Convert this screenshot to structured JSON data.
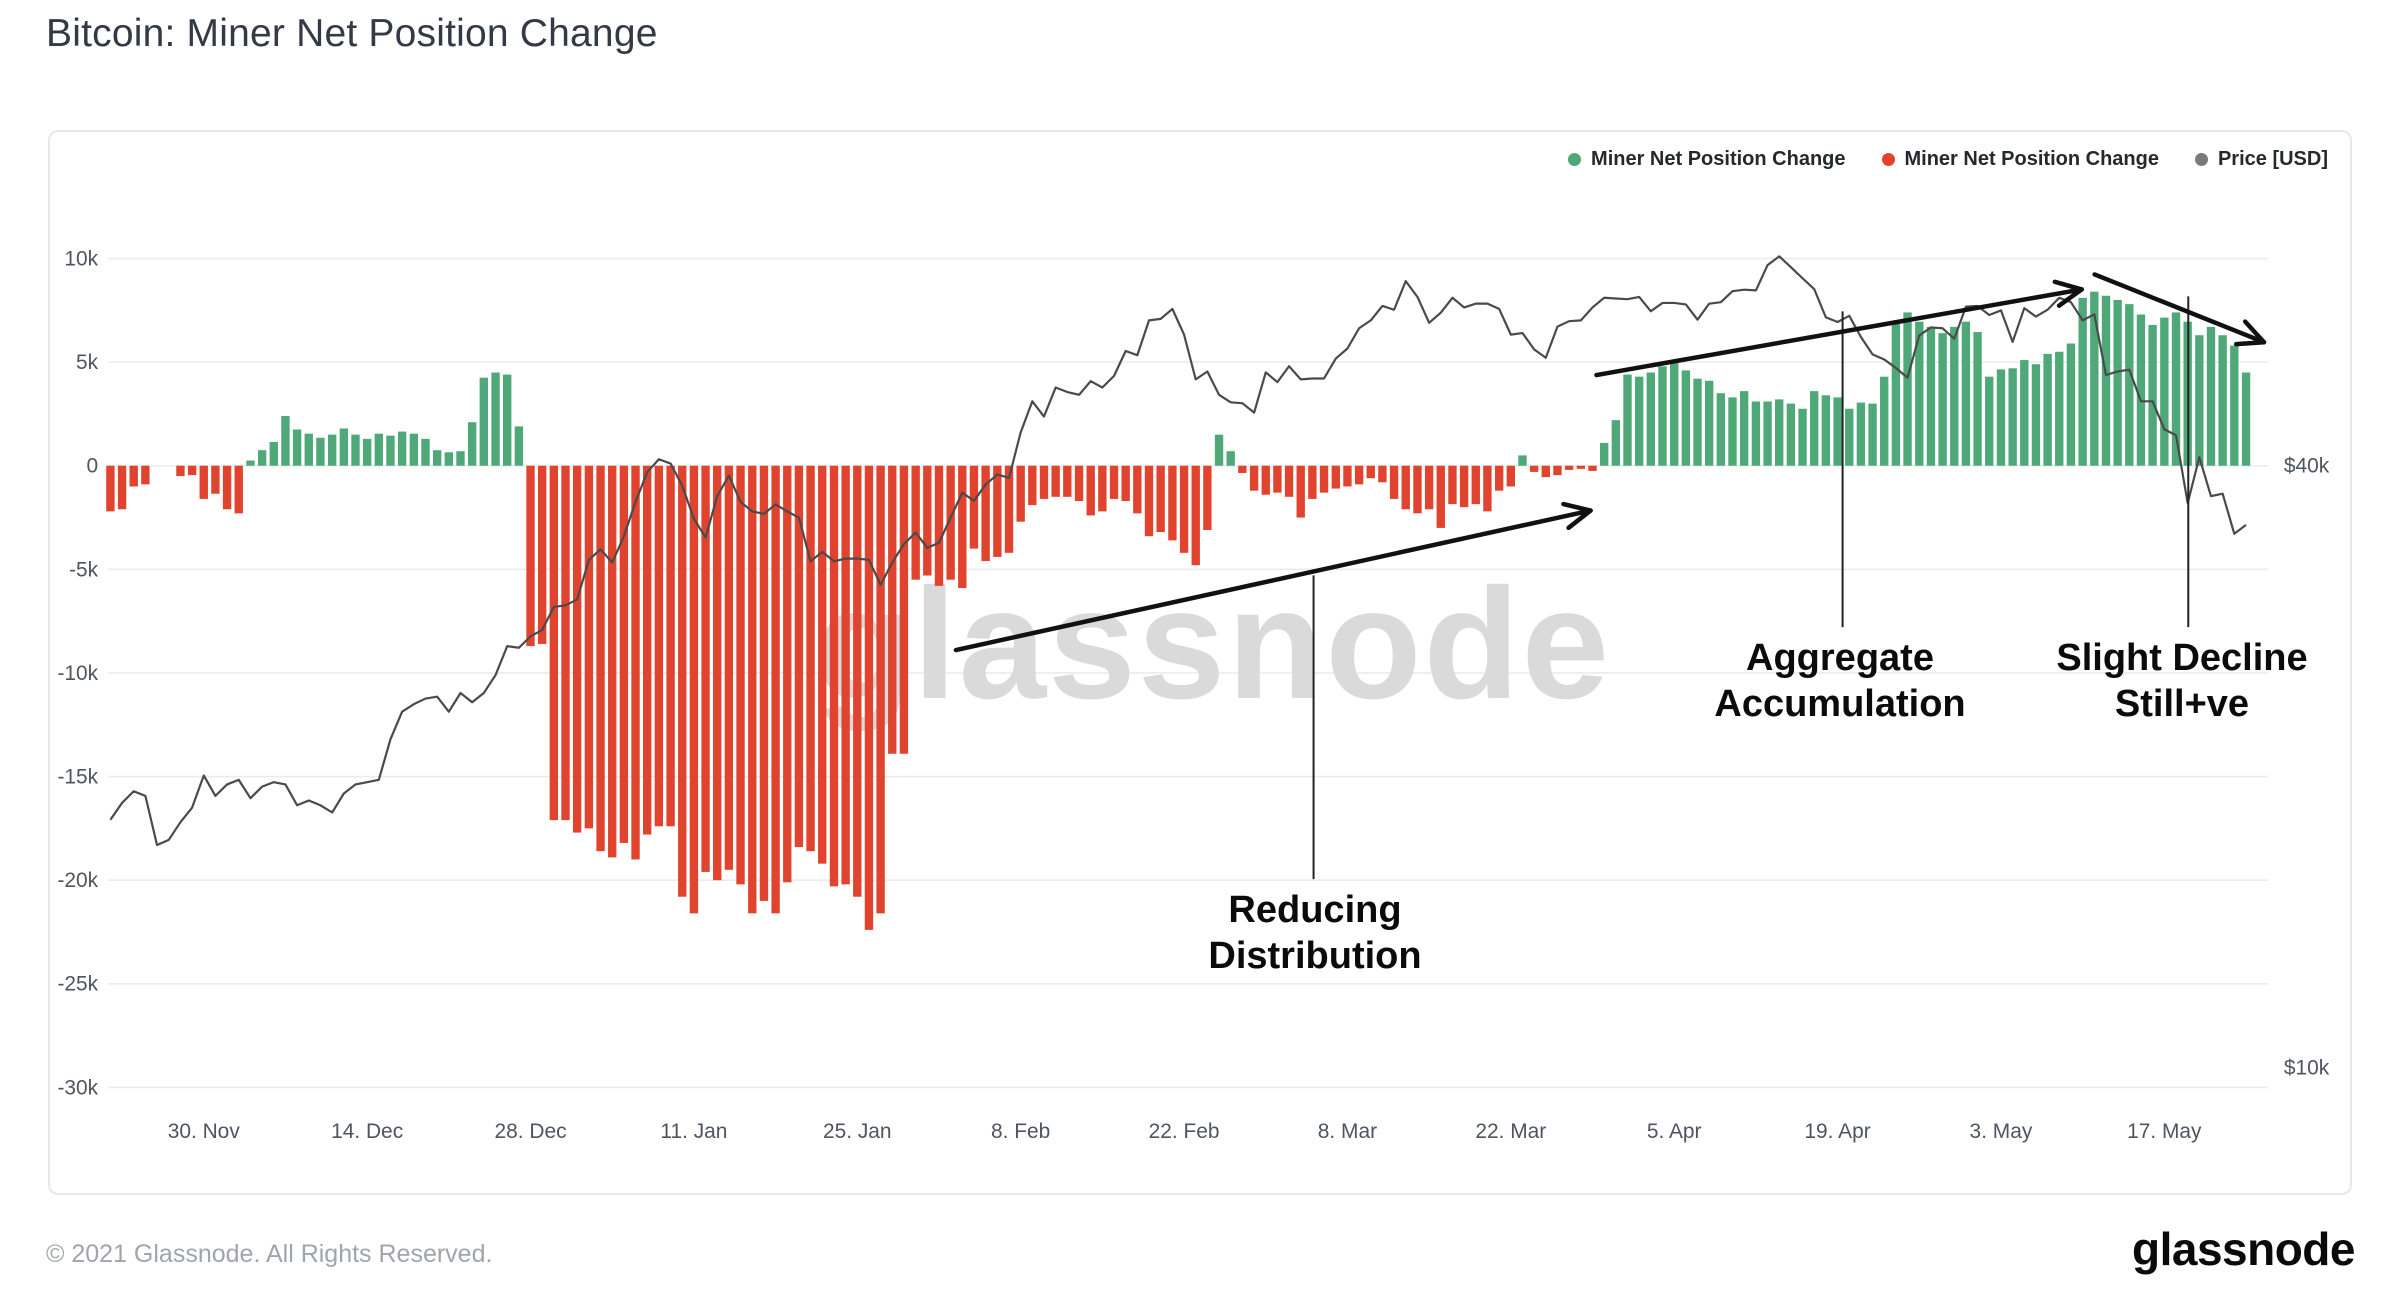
{
  "header": {
    "title": "Bitcoin: Miner Net Position Change"
  },
  "legend": {
    "items": [
      {
        "label": "Miner Net Position Change",
        "color": "#4ea878"
      },
      {
        "label": "Miner Net Position Change",
        "color": "#e0442f"
      },
      {
        "label": "Price [USD]",
        "color": "#7a7a7a"
      }
    ]
  },
  "watermark": "glassnode",
  "annotations": {
    "reducing": {
      "lines": [
        "Reducing",
        "Distribution"
      ]
    },
    "aggregate": {
      "lines": [
        "Aggregate",
        "Accumulation"
      ]
    },
    "slight": {
      "lines": [
        "Slight Decline",
        "Still+ve"
      ]
    }
  },
  "footer": {
    "copyright": "© 2021 Glassnode. All Rights Reserved.",
    "logo": "glassnode"
  },
  "chart_data": {
    "type": "bar",
    "title": "Bitcoin: Miner Net Position Change",
    "start_date": "2020-11-22",
    "frequency": "daily",
    "bar_series_name": "Miner Net Position Change",
    "bar_unit": "BTC (thousands)",
    "bar_values_k_btc": [
      -2.2,
      -2.1,
      -1.0,
      -0.9,
      0,
      0,
      -0.5,
      -0.45,
      -1.6,
      -1.35,
      -2.1,
      -2.3,
      0.25,
      0.75,
      1.15,
      2.4,
      1.75,
      1.55,
      1.35,
      1.5,
      1.8,
      1.5,
      1.3,
      1.55,
      1.45,
      1.65,
      1.55,
      1.3,
      0.75,
      0.65,
      0.7,
      2.1,
      4.25,
      4.5,
      4.4,
      1.9,
      -8.7,
      -8.6,
      -17.1,
      -17.1,
      -17.7,
      -17.5,
      -18.6,
      -18.9,
      -18.2,
      -19.0,
      -17.8,
      -17.4,
      -17.4,
      -20.8,
      -21.6,
      -19.6,
      -20.0,
      -19.5,
      -20.2,
      -21.6,
      -21.0,
      -21.6,
      -20.1,
      -18.4,
      -18.6,
      -19.2,
      -20.3,
      -20.2,
      -20.8,
      -22.4,
      -21.6,
      -13.9,
      -13.9,
      -5.5,
      -5.3,
      -5.8,
      -5.5,
      -5.9,
      -4.0,
      -4.6,
      -4.4,
      -4.2,
      -2.7,
      -1.9,
      -1.6,
      -1.5,
      -1.5,
      -1.7,
      -2.4,
      -2.2,
      -1.6,
      -1.7,
      -2.3,
      -3.4,
      -3.2,
      -3.6,
      -4.2,
      -4.8,
      -3.1,
      1.5,
      0.7,
      -0.35,
      -1.2,
      -1.4,
      -1.3,
      -1.5,
      -2.5,
      -1.6,
      -1.3,
      -1.1,
      -1.0,
      -0.9,
      -0.6,
      -0.8,
      -1.6,
      -2.1,
      -2.3,
      -2.1,
      -3.0,
      -1.85,
      -2.0,
      -1.85,
      -2.2,
      -1.2,
      -1.0,
      0.5,
      -0.3,
      -0.55,
      -0.45,
      -0.2,
      -0.15,
      -0.25,
      1.1,
      2.2,
      4.4,
      4.3,
      4.5,
      4.8,
      5.0,
      4.6,
      4.2,
      4.1,
      3.5,
      3.3,
      3.6,
      3.1,
      3.1,
      3.2,
      3.0,
      2.75,
      3.6,
      3.4,
      3.3,
      2.75,
      3.05,
      3.0,
      4.3,
      6.9,
      7.4,
      6.95,
      6.7,
      6.4,
      6.7,
      6.95,
      6.45,
      4.3,
      4.65,
      4.7,
      5.1,
      4.9,
      5.4,
      5.5,
      5.9,
      8.1,
      8.4,
      8.2,
      8.0,
      7.8,
      7.3,
      6.8,
      7.15,
      7.4,
      6.95,
      6.3,
      6.7,
      6.3,
      5.8,
      4.5
    ],
    "line_series_name": "Price [USD]",
    "line_unit": "USD (thousands)",
    "price_values_k_usd": [
      17.7,
      18.4,
      18.9,
      18.7,
      16.7,
      16.9,
      17.6,
      18.2,
      19.6,
      18.7,
      19.2,
      19.4,
      18.6,
      19.1,
      19.3,
      19.2,
      18.3,
      18.5,
      18.3,
      18.0,
      18.8,
      19.2,
      19.3,
      19.4,
      21.3,
      22.7,
      23.1,
      23.4,
      23.5,
      22.7,
      23.7,
      23.2,
      23.7,
      24.7,
      26.4,
      26.3,
      27.0,
      27.4,
      28.9,
      29.0,
      29.4,
      32.2,
      33.0,
      32.0,
      34.0,
      36.8,
      39.4,
      40.6,
      40.2,
      38.2,
      35.4,
      33.9,
      37.3,
      39.1,
      36.8,
      36.0,
      35.8,
      36.6,
      36.0,
      35.5,
      32.1,
      32.8,
      32.1,
      32.3,
      32.3,
      32.2,
      30.4,
      32.0,
      33.4,
      34.3,
      33.1,
      33.5,
      35.5,
      37.6,
      36.9,
      38.3,
      39.2,
      38.9,
      43.2,
      46.4,
      44.8,
      47.9,
      47.4,
      47.1,
      48.6,
      47.9,
      49.2,
      52.1,
      51.6,
      55.9,
      56.1,
      57.4,
      54.1,
      48.8,
      49.7,
      47.1,
      46.3,
      46.2,
      45.2,
      49.6,
      48.5,
      50.3,
      48.8,
      48.9,
      48.9,
      51.2,
      52.4,
      54.9,
      55.9,
      57.8,
      57.3,
      61.2,
      59.0,
      55.6,
      56.9,
      58.9,
      57.6,
      58.1,
      58.1,
      57.4,
      54.1,
      54.3,
      52.3,
      51.3,
      55.1,
      55.8,
      55.9,
      57.6,
      58.9,
      58.8,
      58.7,
      59.0,
      57.1,
      58.2,
      58.2,
      58.0,
      56.0,
      58.1,
      58.3,
      59.8,
      60.0,
      59.9,
      63.5,
      64.8,
      63.2,
      61.6,
      60.1,
      56.3,
      55.7,
      56.5,
      53.8,
      51.7,
      51.1,
      50.1,
      49.0,
      54.0,
      55.0,
      54.9,
      53.6,
      57.7,
      57.8,
      56.6,
      57.2,
      53.2,
      57.5,
      56.4,
      57.3,
      58.9,
      58.3,
      55.9,
      56.7,
      49.3,
      49.7,
      49.9,
      46.4,
      46.4,
      43.5,
      42.9,
      36.7,
      40.8,
      37.3,
      37.5,
      34.2,
      34.9
    ],
    "y_axis_left": {
      "ticks": [
        {
          "label": "10k",
          "value": 10
        },
        {
          "label": "5k",
          "value": 5
        },
        {
          "label": "0",
          "value": 0
        },
        {
          "label": "-5k",
          "value": -5
        },
        {
          "label": "-10k",
          "value": -10
        },
        {
          "label": "-15k",
          "value": -15
        },
        {
          "label": "-20k",
          "value": -20
        },
        {
          "label": "-25k",
          "value": -25
        },
        {
          "label": "-30k",
          "value": -30
        }
      ],
      "range": [
        -30,
        10
      ]
    },
    "y_axis_right": {
      "scale": "log",
      "ticks": [
        {
          "label": "$40k",
          "value": 40
        },
        {
          "label": "$10k",
          "value": 10
        }
      ]
    },
    "x_axis": {
      "ticks": [
        {
          "label": "30. Nov",
          "day": 8
        },
        {
          "label": "14. Dec",
          "day": 22
        },
        {
          "label": "28. Dec",
          "day": 36
        },
        {
          "label": "11. Jan",
          "day": 50
        },
        {
          "label": "25. Jan",
          "day": 64
        },
        {
          "label": "8. Feb",
          "day": 78
        },
        {
          "label": "22. Feb",
          "day": 92
        },
        {
          "label": "8. Mar",
          "day": 106
        },
        {
          "label": "22. Mar",
          "day": 120
        },
        {
          "label": "5. Apr",
          "day": 134
        },
        {
          "label": "19. Apr",
          "day": 148
        },
        {
          "label": "3. May",
          "day": 162
        },
        {
          "label": "17. May",
          "day": 176
        }
      ]
    },
    "colors": {
      "positive": "#4ea878",
      "negative": "#e0442f",
      "price": "#4a4a4a",
      "grid": "#ebebeb",
      "axis_text": "#4e555e",
      "watermark": "#dadada"
    },
    "grid": "horizontal",
    "legend_position": "top-right"
  }
}
